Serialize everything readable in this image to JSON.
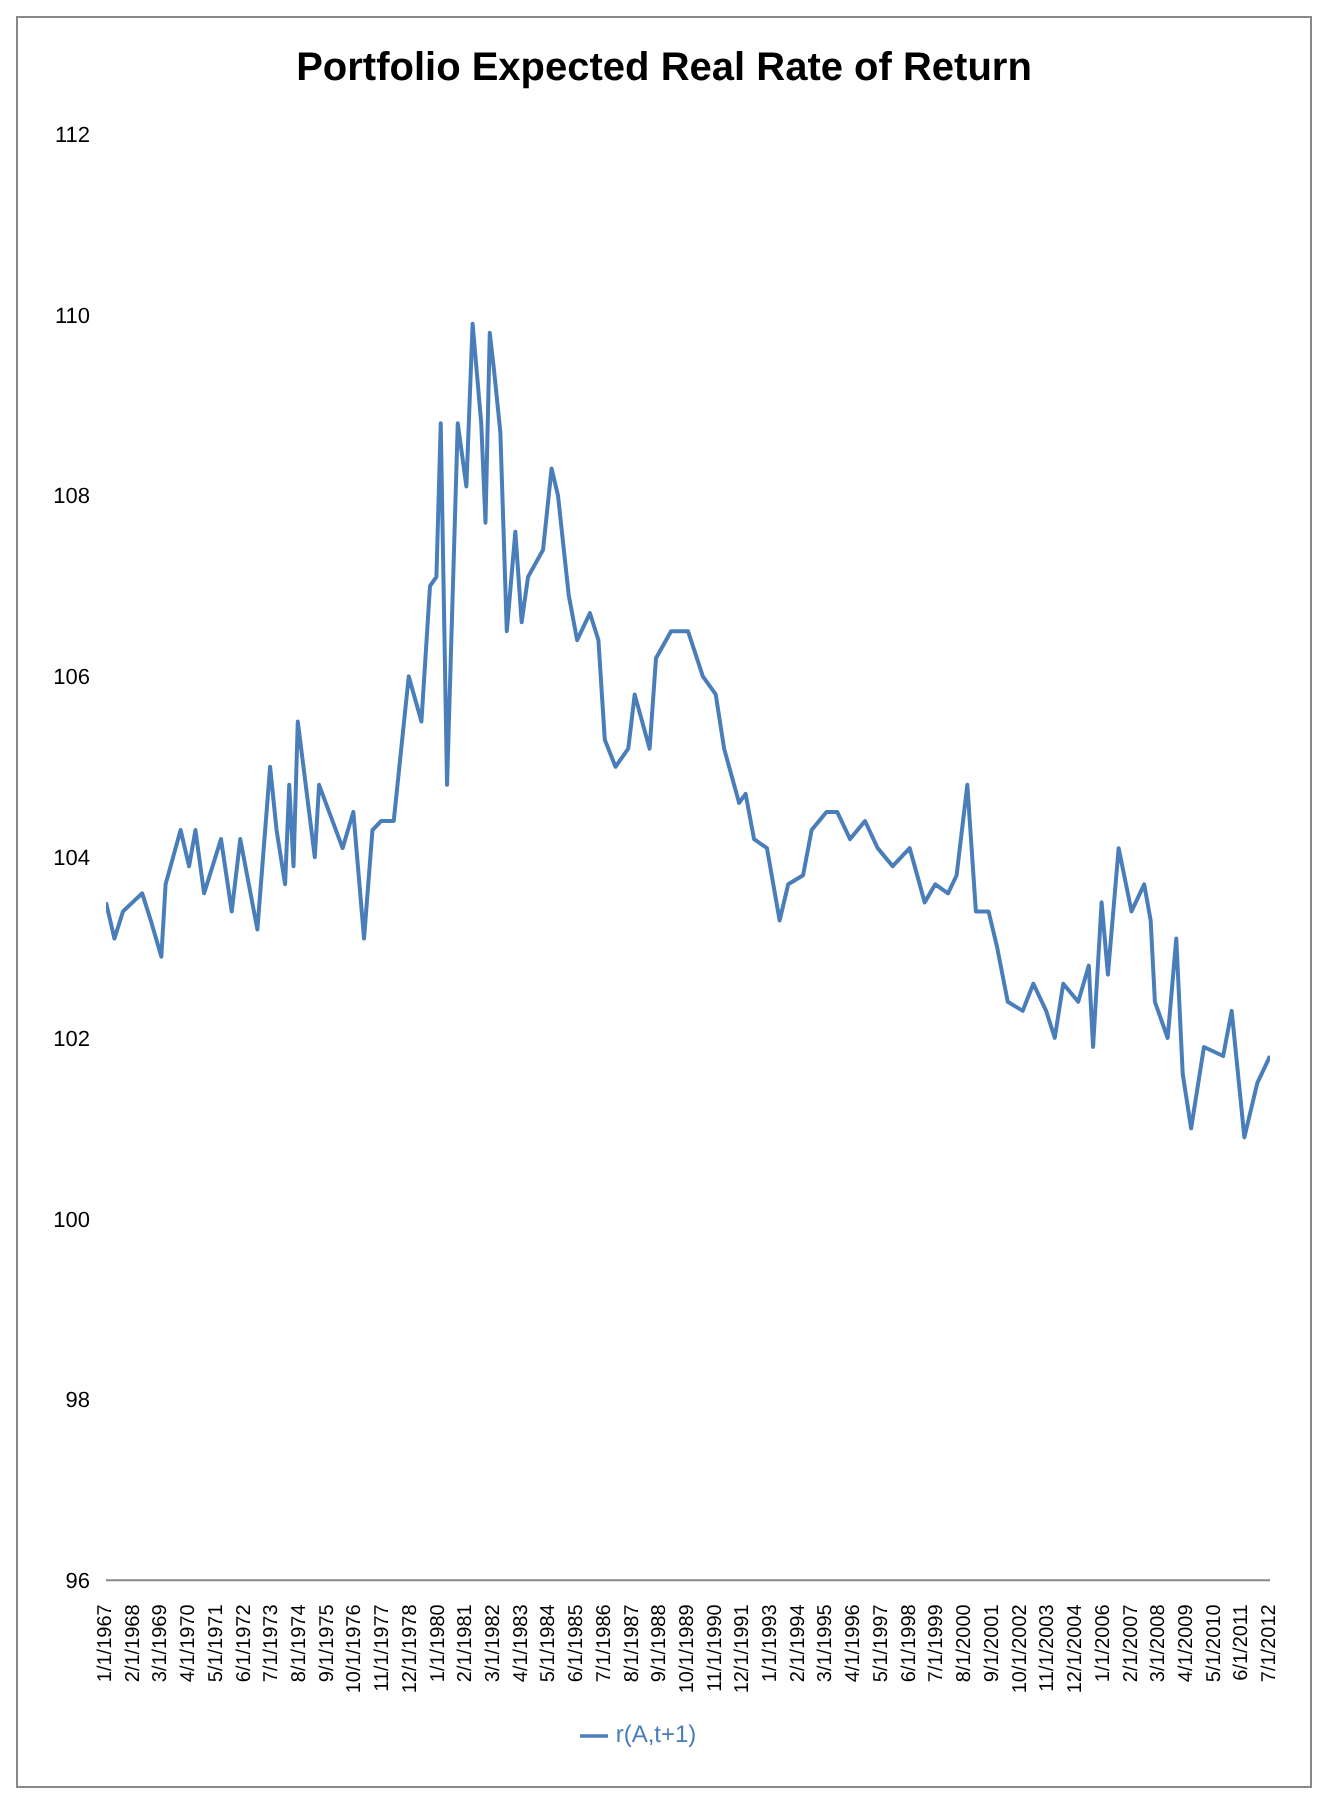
{
  "chart_data": {
    "type": "line",
    "title": "Portfolio Expected Real Rate of Return",
    "x": [
      "1967-01",
      "1967-05",
      "1967-09",
      "1968-06",
      "1968-10",
      "1969-03",
      "1969-05",
      "1969-12",
      "1970-04",
      "1970-07",
      "1970-11",
      "1971-07",
      "1971-12",
      "1972-04",
      "1972-12",
      "1973-06",
      "1973-09",
      "1974-01",
      "1974-03",
      "1974-05",
      "1974-07",
      "1975-03",
      "1975-05",
      "1976-04",
      "1976-09",
      "1977-02",
      "1977-06",
      "1977-10",
      "1978-04",
      "1978-11",
      "1979-05",
      "1979-09",
      "1979-12",
      "1980-02",
      "1980-05",
      "1980-10",
      "1981-02",
      "1981-05",
      "1981-09",
      "1981-11",
      "1982-01",
      "1982-03",
      "1982-06",
      "1982-09",
      "1983-01",
      "1983-04",
      "1983-07",
      "1984-02",
      "1984-06",
      "1984-09",
      "1985-02",
      "1985-06",
      "1985-12",
      "1986-04",
      "1986-07",
      "1986-12",
      "1987-06",
      "1987-09",
      "1988-04",
      "1988-07",
      "1989-02",
      "1989-10",
      "1990-05",
      "1990-11",
      "1991-03",
      "1991-10",
      "1992-01",
      "1992-05",
      "1992-11",
      "1993-05",
      "1993-09",
      "1994-04",
      "1994-08",
      "1995-03",
      "1995-08",
      "1996-02",
      "1996-09",
      "1997-03",
      "1997-10",
      "1998-06",
      "1999-01",
      "1999-06",
      "1999-12",
      "2000-04",
      "2000-09",
      "2001-01",
      "2001-07",
      "2001-11",
      "2002-04",
      "2002-11",
      "2003-04",
      "2003-10",
      "2004-02",
      "2004-06",
      "2005-01",
      "2005-06",
      "2005-08",
      "2005-12",
      "2006-03",
      "2006-08",
      "2007-02",
      "2007-08",
      "2007-11",
      "2008-01",
      "2008-07",
      "2008-11",
      "2009-02",
      "2009-06",
      "2009-12",
      "2010-09",
      "2011-01",
      "2011-07",
      "2012-01",
      "2012-07"
    ],
    "series": [
      {
        "name": "r(A,t+1)",
        "color": "#4a7ebb",
        "values": [
          103.5,
          103.1,
          103.4,
          103.6,
          103.3,
          102.9,
          103.7,
          104.3,
          103.9,
          104.3,
          103.6,
          104.2,
          103.4,
          104.2,
          103.2,
          105.0,
          104.3,
          103.7,
          104.8,
          103.9,
          105.5,
          104.0,
          104.8,
          104.1,
          104.5,
          103.1,
          104.3,
          104.4,
          104.4,
          106.0,
          105.5,
          107.0,
          107.1,
          108.8,
          104.8,
          108.8,
          108.1,
          109.9,
          108.8,
          107.7,
          109.8,
          109.4,
          108.7,
          106.5,
          107.6,
          106.6,
          107.1,
          107.4,
          108.3,
          108.0,
          106.9,
          106.4,
          106.7,
          106.4,
          105.3,
          105.0,
          105.2,
          105.8,
          105.2,
          106.2,
          106.5,
          106.5,
          106.0,
          105.8,
          105.2,
          104.6,
          104.7,
          104.2,
          104.1,
          103.3,
          103.7,
          103.8,
          104.3,
          104.5,
          104.5,
          104.2,
          104.4,
          104.1,
          103.9,
          104.1,
          103.5,
          103.7,
          103.6,
          103.8,
          104.8,
          103.4,
          103.4,
          103.0,
          102.4,
          102.3,
          102.6,
          102.3,
          102.0,
          102.6,
          102.4,
          102.8,
          101.9,
          103.5,
          102.7,
          104.1,
          103.4,
          103.7,
          103.3,
          102.4,
          102.0,
          103.1,
          101.6,
          101.0,
          101.9,
          101.8,
          102.3,
          100.9,
          101.5,
          101.8
        ]
      }
    ],
    "xlim": [
      "1967-01",
      "2012-07"
    ],
    "xticks": [
      {
        "value": "1967-01",
        "label": "1/1/1967"
      },
      {
        "value": "1968-02",
        "label": "2/1/1968"
      },
      {
        "value": "1969-03",
        "label": "3/1/1969"
      },
      {
        "value": "1970-04",
        "label": "4/1/1970"
      },
      {
        "value": "1971-05",
        "label": "5/1/1971"
      },
      {
        "value": "1972-06",
        "label": "6/1/1972"
      },
      {
        "value": "1973-07",
        "label": "7/1/1973"
      },
      {
        "value": "1974-08",
        "label": "8/1/1974"
      },
      {
        "value": "1975-09",
        "label": "9/1/1975"
      },
      {
        "value": "1976-10",
        "label": "10/1/1976"
      },
      {
        "value": "1977-11",
        "label": "11/1/1977"
      },
      {
        "value": "1978-12",
        "label": "12/1/1978"
      },
      {
        "value": "1980-01",
        "label": "1/1/1980"
      },
      {
        "value": "1981-02",
        "label": "2/1/1981"
      },
      {
        "value": "1982-03",
        "label": "3/1/1982"
      },
      {
        "value": "1983-04",
        "label": "4/1/1983"
      },
      {
        "value": "1984-05",
        "label": "5/1/1984"
      },
      {
        "value": "1985-06",
        "label": "6/1/1985"
      },
      {
        "value": "1986-07",
        "label": "7/1/1986"
      },
      {
        "value": "1987-08",
        "label": "8/1/1987"
      },
      {
        "value": "1988-09",
        "label": "9/1/1988"
      },
      {
        "value": "1989-10",
        "label": "10/1/1989"
      },
      {
        "value": "1990-11",
        "label": "11/1/1990"
      },
      {
        "value": "1991-12",
        "label": "12/1/1991"
      },
      {
        "value": "1993-01",
        "label": "1/1/1993"
      },
      {
        "value": "1994-02",
        "label": "2/1/1994"
      },
      {
        "value": "1995-03",
        "label": "3/1/1995"
      },
      {
        "value": "1996-04",
        "label": "4/1/1996"
      },
      {
        "value": "1997-05",
        "label": "5/1/1997"
      },
      {
        "value": "1998-06",
        "label": "6/1/1998"
      },
      {
        "value": "1999-07",
        "label": "7/1/1999"
      },
      {
        "value": "2000-08",
        "label": "8/1/2000"
      },
      {
        "value": "2001-09",
        "label": "9/1/2001"
      },
      {
        "value": "2002-10",
        "label": "10/1/2002"
      },
      {
        "value": "2003-11",
        "label": "11/1/2003"
      },
      {
        "value": "2004-12",
        "label": "12/1/2004"
      },
      {
        "value": "2006-01",
        "label": "1/1/2006"
      },
      {
        "value": "2007-02",
        "label": "2/1/2007"
      },
      {
        "value": "2008-03",
        "label": "3/1/2008"
      },
      {
        "value": "2009-04",
        "label": "4/1/2009"
      },
      {
        "value": "2010-05",
        "label": "5/1/2010"
      },
      {
        "value": "2011-06",
        "label": "6/1/2011"
      },
      {
        "value": "2012-07",
        "label": "7/1/2012"
      }
    ],
    "ylim": [
      96,
      112
    ],
    "yticks": [
      96,
      98,
      100,
      102,
      104,
      106,
      108,
      110,
      112
    ],
    "grid": false,
    "legend": "bottom",
    "line_style": "solid"
  }
}
